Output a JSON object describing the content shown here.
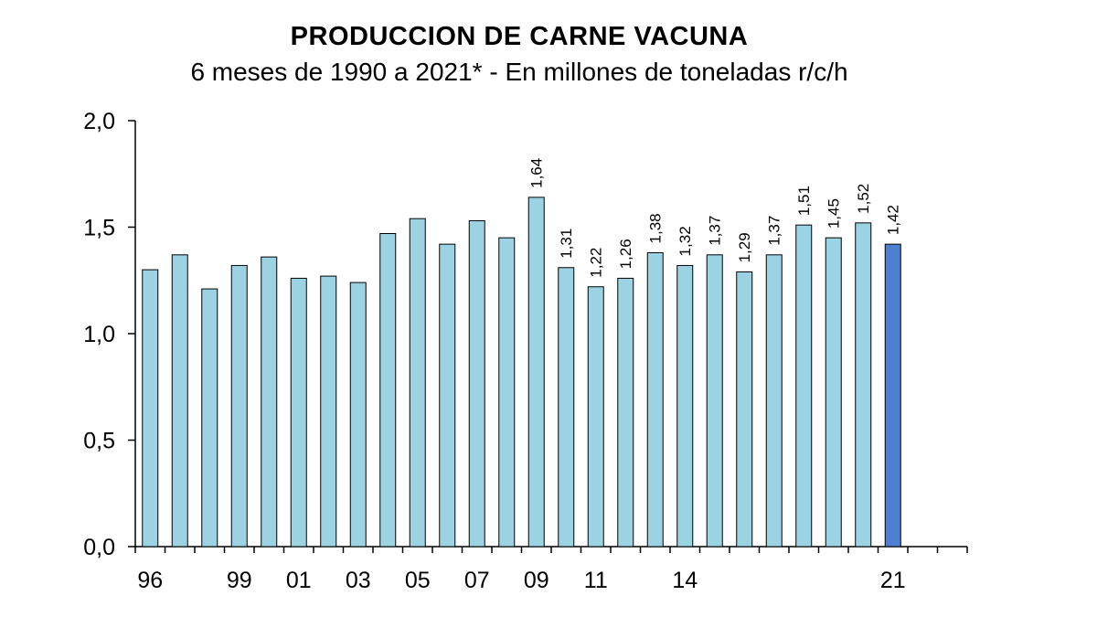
{
  "chart_data": {
    "type": "bar",
    "title": "PRODUCCION DE CARNE VACUNA",
    "subtitle": "6 meses de 1990 a 2021* - En millones de toneladas r/c/h",
    "xlabel": "",
    "ylabel": "",
    "ylim": [
      0,
      2.0
    ],
    "yticks": [
      "0,0",
      "0,5",
      "1,0",
      "1,5",
      "2,0"
    ],
    "grid": false,
    "x_tick_labels": [
      "96",
      "",
      "",
      "99",
      "",
      "01",
      "",
      "03",
      "",
      "05",
      "",
      "07",
      "",
      "09",
      "",
      "11",
      "",
      "",
      "14",
      "",
      "",
      "",
      "",
      "",
      "",
      "21"
    ],
    "values": [
      1.3,
      1.37,
      1.21,
      1.32,
      1.36,
      1.26,
      1.27,
      1.24,
      1.47,
      1.54,
      1.42,
      1.53,
      1.45,
      1.64,
      1.31,
      1.22,
      1.26,
      1.38,
      1.32,
      1.37,
      1.29,
      1.37,
      1.51,
      1.45,
      1.52,
      1.42
    ],
    "data_labels": [
      "",
      "",
      "",
      "",
      "",
      "",
      "",
      "",
      "",
      "",
      "",
      "",
      "",
      "1,64",
      "1,31",
      "1,22",
      "1,26",
      "1,38",
      "1,32",
      "1,37",
      "1,29",
      "1,37",
      "1,51",
      "1,45",
      "1,52",
      "1,42"
    ],
    "colors": {
      "bar": "#9cd3e3",
      "highlight": "#4f7fd1",
      "stroke": "#000000"
    },
    "highlight_index": 25
  }
}
